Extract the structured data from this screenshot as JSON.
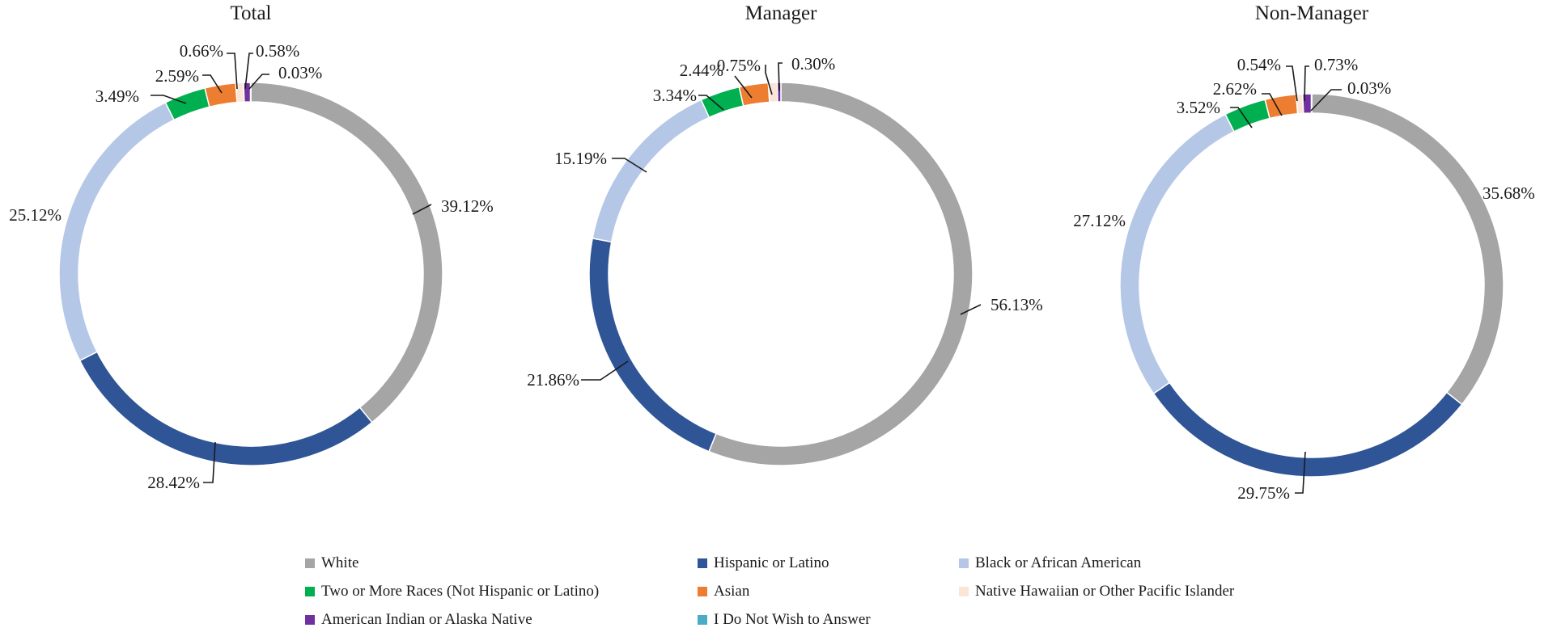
{
  "chart_data": [
    {
      "type": "pie",
      "title": "Total",
      "categories": [
        "White",
        "Hispanic or Latino",
        "Black or African American",
        "Two or More Races (Not Hispanic or Latino)",
        "Asian",
        "Native Hawaiian or Other Pacific Islander",
        "American Indian or Alaska Native",
        "I Do Not Wish to Answer"
      ],
      "values": [
        39.12,
        28.42,
        25.12,
        3.49,
        2.59,
        0.66,
        0.58,
        0.03
      ],
      "labels": [
        "39.12%",
        "28.42%",
        "25.12%",
        "3.49%",
        "2.59%",
        "0.66%",
        "0.58%",
        "0.03%"
      ]
    },
    {
      "type": "pie",
      "title": "Manager",
      "categories": [
        "White",
        "Hispanic or Latino",
        "Black or African American",
        "Two or More Races (Not Hispanic or Latino)",
        "Asian",
        "Native Hawaiian or Other Pacific Islander",
        "American Indian or Alaska Native",
        "I Do Not Wish to Answer"
      ],
      "values": [
        56.13,
        21.86,
        15.19,
        3.34,
        2.44,
        0.75,
        0.3,
        0.0
      ],
      "labels": [
        "56.13%",
        "21.86%",
        "15.19%",
        "3.34%",
        "2.44%",
        "0.75%",
        "0.30%",
        ""
      ]
    },
    {
      "type": "pie",
      "title": "Non-Manager",
      "categories": [
        "White",
        "Hispanic or Latino",
        "Black or African American",
        "Two or More Races (Not Hispanic or Latino)",
        "Asian",
        "Native Hawaiian or Other Pacific Islander",
        "American Indian or Alaska Native",
        "I Do Not Wish to Answer"
      ],
      "values": [
        35.68,
        29.75,
        27.12,
        3.52,
        2.62,
        0.54,
        0.73,
        0.03
      ],
      "labels": [
        "35.68%",
        "29.75%",
        "27.12%",
        "3.52%",
        "2.62%",
        "0.54%",
        "0.73%",
        "0.03%"
      ]
    }
  ],
  "legend": [
    {
      "name": "White",
      "color": "#a5a5a5"
    },
    {
      "name": "Hispanic or Latino",
      "color": "#2f5597"
    },
    {
      "name": "Black or African American",
      "color": "#b4c7e7"
    },
    {
      "name": "Two or More Races (Not Hispanic or Latino)",
      "color": "#00b050"
    },
    {
      "name": "Asian",
      "color": "#ed7d31"
    },
    {
      "name": "Native Hawaiian or Other Pacific Islander",
      "color": "#fbe5d6"
    },
    {
      "name": "American Indian or Alaska Native",
      "color": "#7030a0"
    },
    {
      "name": "I Do Not Wish to Answer",
      "color": "#4bacc6"
    }
  ]
}
